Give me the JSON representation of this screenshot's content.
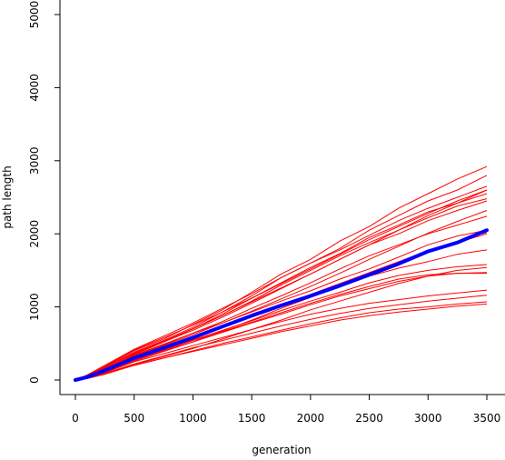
{
  "chart_data": {
    "type": "line",
    "title": "",
    "xlabel": "generation",
    "ylabel": "path length",
    "xlim": [
      0,
      3500
    ],
    "ylim": [
      0,
      5000
    ],
    "xticks": [
      0,
      500,
      1000,
      1500,
      2000,
      2500,
      3000,
      3500
    ],
    "yticks": [
      0,
      1000,
      2000,
      3000,
      4000,
      5000
    ],
    "grid": false,
    "legend": "none",
    "colors": {
      "runs": "#ff0000",
      "mean": "#0000ff"
    },
    "x": [
      0,
      100,
      250,
      500,
      750,
      1000,
      1250,
      1500,
      1750,
      2000,
      2250,
      2500,
      2750,
      3000,
      3250,
      3500
    ],
    "series": [
      {
        "values": [
          0,
          50,
          180,
          400,
          560,
          760,
          960,
          1200,
          1450,
          1650,
          1900,
          2100,
          2350,
          2550,
          2750,
          2920
        ]
      },
      {
        "values": [
          0,
          60,
          170,
          380,
          540,
          720,
          930,
          1150,
          1400,
          1600,
          1800,
          2050,
          2250,
          2450,
          2600,
          2800
        ]
      },
      {
        "values": [
          0,
          70,
          200,
          420,
          600,
          780,
          980,
          1180,
          1400,
          1600,
          1780,
          1980,
          2180,
          2350,
          2500,
          2650
        ]
      },
      {
        "values": [
          0,
          40,
          150,
          350,
          520,
          700,
          900,
          1120,
          1330,
          1540,
          1730,
          1950,
          2120,
          2300,
          2420,
          2550
        ]
      },
      {
        "values": [
          0,
          50,
          160,
          370,
          530,
          700,
          880,
          1080,
          1300,
          1500,
          1700,
          1880,
          2050,
          2220,
          2380,
          2480
        ]
      },
      {
        "values": [
          0,
          60,
          170,
          360,
          520,
          680,
          860,
          1050,
          1250,
          1450,
          1650,
          1850,
          2000,
          2180,
          2320,
          2450
        ]
      },
      {
        "values": [
          0,
          30,
          140,
          330,
          480,
          640,
          800,
          980,
          1150,
          1330,
          1520,
          1700,
          1850,
          2000,
          2120,
          2240
        ]
      },
      {
        "values": [
          0,
          50,
          150,
          340,
          490,
          640,
          780,
          930,
          1080,
          1220,
          1380,
          1520,
          1680,
          1850,
          1970,
          2050
        ]
      },
      {
        "values": [
          0,
          40,
          130,
          300,
          440,
          580,
          720,
          860,
          1000,
          1140,
          1280,
          1420,
          1530,
          1620,
          1720,
          1780
        ]
      },
      {
        "values": [
          0,
          40,
          120,
          290,
          420,
          550,
          680,
          810,
          950,
          1080,
          1200,
          1330,
          1430,
          1500,
          1550,
          1580
        ]
      },
      {
        "values": [
          0,
          30,
          110,
          270,
          400,
          520,
          650,
          780,
          900,
          1030,
          1150,
          1250,
          1350,
          1420,
          1460,
          1470
        ]
      },
      {
        "values": [
          0,
          40,
          120,
          280,
          410,
          540,
          660,
          790,
          920,
          1050,
          1170,
          1280,
          1380,
          1440,
          1460,
          1460
        ]
      },
      {
        "values": [
          0,
          30,
          100,
          250,
          360,
          470,
          580,
          690,
          800,
          900,
          980,
          1050,
          1100,
          1150,
          1190,
          1230
        ]
      },
      {
        "values": [
          0,
          20,
          90,
          220,
          330,
          440,
          540,
          640,
          740,
          830,
          910,
          980,
          1030,
          1080,
          1120,
          1160
        ]
      },
      {
        "values": [
          0,
          30,
          90,
          200,
          300,
          400,
          500,
          590,
          680,
          770,
          850,
          920,
          970,
          1000,
          1040,
          1070
        ]
      },
      {
        "values": [
          0,
          20,
          80,
          200,
          300,
          390,
          480,
          570,
          660,
          740,
          820,
          880,
          930,
          970,
          1010,
          1040
        ]
      },
      {
        "values": [
          0,
          30,
          110,
          260,
          390,
          520,
          670,
          820,
          980,
          1130,
          1290,
          1440,
          1600,
          1750,
          1880,
          2000
        ]
      },
      {
        "values": [
          0,
          50,
          150,
          350,
          520,
          700,
          880,
          1070,
          1260,
          1450,
          1650,
          1850,
          2050,
          2250,
          2420,
          2600
        ]
      },
      {
        "values": [
          0,
          40,
          130,
          320,
          470,
          620,
          780,
          940,
          1110,
          1280,
          1460,
          1650,
          1830,
          2010,
          2170,
          2320
        ]
      },
      {
        "values": [
          0,
          60,
          190,
          410,
          580,
          750,
          930,
          1120,
          1320,
          1520,
          1720,
          1920,
          2100,
          2280,
          2450,
          2600
        ]
      },
      {
        "values": [
          0,
          20,
          80,
          210,
          320,
          430,
          560,
          690,
          820,
          960,
          1080,
          1200,
          1320,
          1420,
          1500,
          1540
        ]
      },
      {
        "values": [
          0,
          40,
          130,
          310,
          440,
          580,
          720,
          870,
          1020,
          1170,
          1320,
          1470,
          1620,
          1770,
          1900,
          2020
        ]
      }
    ],
    "mean_series": {
      "values": [
        0,
        40,
        130,
        300,
        440,
        580,
        730,
        880,
        1020,
        1150,
        1290,
        1440,
        1590,
        1760,
        1880,
        2050
      ]
    }
  }
}
